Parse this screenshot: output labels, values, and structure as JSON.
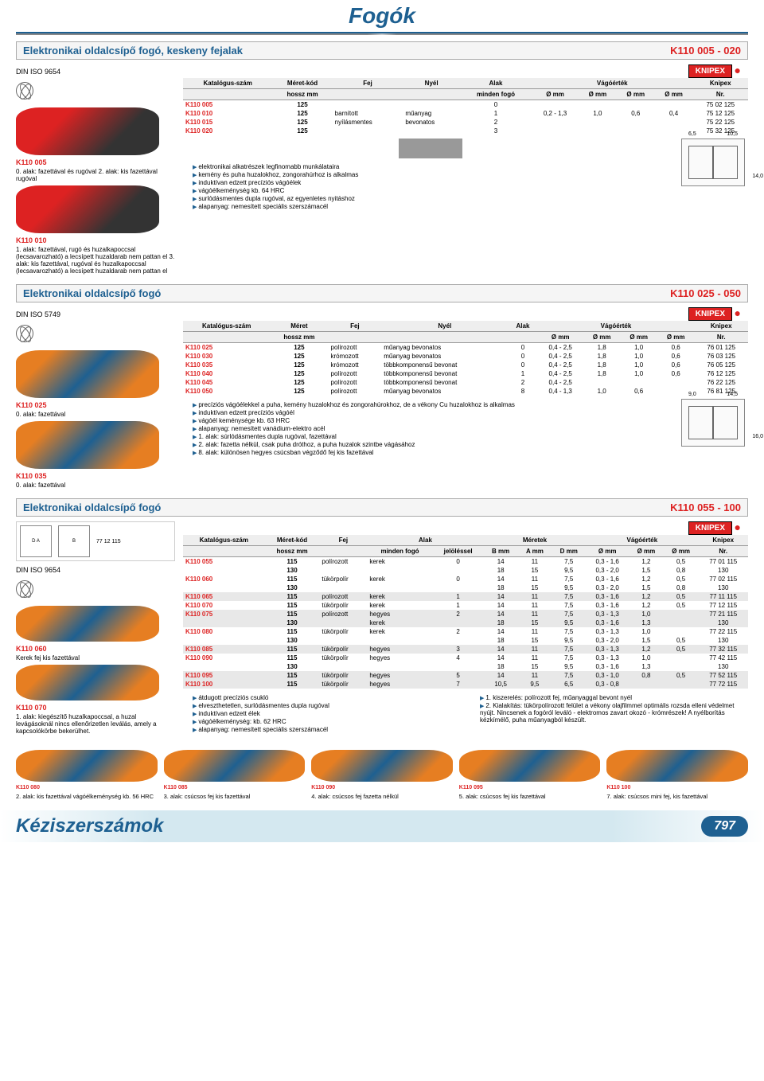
{
  "page": {
    "title": "Fogók",
    "footer": "Kéziszerszámok",
    "number": "797"
  },
  "brand": "KNIPEX",
  "sec1": {
    "title": "Elektronikai oldalcsípő fogó, keskeny fejalak",
    "code": "K110 005 - 020",
    "din": "DIN ISO 9654",
    "left": [
      {
        "code": "K110 005",
        "desc": "0. alak: fazettával és rugóval\n2. alak: kis fazettával rugóval"
      },
      {
        "code": "K110 010",
        "desc": "1. alak: fazettával, rugó és huzalkapoccsal (lecsavarozható) a lecsípett huzaldarab nem pattan el\n3. alak: kis fazettával, rugóval és huzalkapoccsal (lecsavarozható) a lecsípett huzaldarab nem pattan el"
      }
    ],
    "headers": {
      "katalog": "Katalógus-szám",
      "meret": "Méret-kód",
      "fej": "Fej",
      "nyel": "Nyél",
      "alak": "Alak",
      "vago": "Vágóérték",
      "knipex": "Knipex",
      "hossz": "hossz\nmm",
      "minden": "minden fogó",
      "omm": "Ø mm",
      "nr": "Nr."
    },
    "rows": [
      {
        "cat": "K110 005",
        "size": "125",
        "fej": "",
        "nyel": "",
        "alak": "0",
        "v1": "",
        "v2": "",
        "v3": "",
        "v4": "",
        "nr": "75 02 125"
      },
      {
        "cat": "K110 010",
        "size": "125",
        "fej": "barnított",
        "nyel": "műanyag",
        "alak": "1",
        "v1": "0,2 - 1,3",
        "v2": "1,0",
        "v3": "0,6",
        "v4": "0,4",
        "nr": "75 12 125"
      },
      {
        "cat": "K110 015",
        "size": "125",
        "fej": "nyílásmentes",
        "nyel": "bevonatos",
        "alak": "2",
        "v1": "",
        "v2": "",
        "v3": "",
        "v4": "",
        "nr": "75 22 125"
      },
      {
        "cat": "K110 020",
        "size": "125",
        "fej": "",
        "nyel": "",
        "alak": "3",
        "v1": "",
        "v2": "",
        "v3": "",
        "v4": "",
        "nr": "75 32 125"
      }
    ],
    "bullets": [
      "elektronikai alkatrészek legfinomabb munkálataira",
      "kemény és puha huzalokhoz, zongorahúrhoz is alkalmas",
      "induktívan edzett precíziós vágóélek",
      "vágóélkeménység kb. 64 HRC",
      "surlódásmentes dupla rugóval, az egyenletes nyitáshoz",
      "alapanyag: nemesített speciális szerszámacél"
    ],
    "dims": {
      "w": "6,5",
      "h": "10,5",
      "d": "14,0"
    }
  },
  "sec2": {
    "title": "Elektronikai oldalcsípő fogó",
    "code": "K110 025 - 050",
    "din": "DIN ISO 5749",
    "left": [
      {
        "code": "K110 025",
        "desc": "0. alak: fazettával"
      },
      {
        "code": "K110 035",
        "desc": "0. alak: fazettával"
      }
    ],
    "headers": {
      "meret": "Méret"
    },
    "rows": [
      {
        "cat": "K110 025",
        "size": "125",
        "fej": "polírozott",
        "nyel": "műanyag bevonatos",
        "alak": "0",
        "v1": "0,4 - 2,5",
        "v2": "1,8",
        "v3": "1,0",
        "v4": "0,6",
        "nr": "76 01 125"
      },
      {
        "cat": "K110 030",
        "size": "125",
        "fej": "krómozott",
        "nyel": "műanyag bevonatos",
        "alak": "0",
        "v1": "0,4 - 2,5",
        "v2": "1,8",
        "v3": "1,0",
        "v4": "0,6",
        "nr": "76 03 125"
      },
      {
        "cat": "K110 035",
        "size": "125",
        "fej": "krómozott",
        "nyel": "többkomponensű bevonat",
        "alak": "0",
        "v1": "0,4 - 2,5",
        "v2": "1,8",
        "v3": "1,0",
        "v4": "0,6",
        "nr": "76 05 125"
      },
      {
        "cat": "K110 040",
        "size": "125",
        "fej": "polírozott",
        "nyel": "többkomponensű bevonat",
        "alak": "1",
        "v1": "0,4 - 2,5",
        "v2": "1,8",
        "v3": "1,0",
        "v4": "0,6",
        "nr": "76 12 125"
      },
      {
        "cat": "K110 045",
        "size": "125",
        "fej": "polírozott",
        "nyel": "többkomponensű bevonat",
        "alak": "2",
        "v1": "0,4 - 2,5",
        "v2": "",
        "v3": "",
        "v4": "",
        "nr": "76 22 125"
      },
      {
        "cat": "K110 050",
        "size": "125",
        "fej": "polírozott",
        "nyel": "műanyag bevonatos",
        "alak": "8",
        "v1": "0,4 - 1,3",
        "v2": "1,0",
        "v3": "0,6",
        "v4": "",
        "nr": "76 81 125"
      }
    ],
    "bullets": [
      "precíziós vágóélekkel a puha, kemény huzalokhoz és zongorahúrokhoz, de a vékony Cu huzalokhoz is alkalmas",
      "induktívan edzett precíziós vágóél",
      "vágóél keménysége kb. 63 HRC",
      "alapanyag: nemesített vanádium-elektro acél",
      "1. alak: súrlódásmentes dupla rugóval, fazettával",
      "2. alak: fazetta nélkül, csak puha dróthoz, a puha huzalok szintbe vágásához",
      "8. alak: különösen hegyes csúcsban végződő fej kis fazettával"
    ],
    "dims": {
      "w": "9,0",
      "h": "14,5",
      "d": "16,0"
    }
  },
  "sec3": {
    "title": "Elektronikai oldalcsípő fogó",
    "code": "K110 055 - 100",
    "din": "DIN ISO 9654",
    "diag_label": "77 12 115",
    "left": [
      {
        "code": "K110 060",
        "desc": "Kerek fej kis fazettával"
      },
      {
        "code": "K110 070",
        "desc": "1. alak: kiegészítő huzalkapoccsal, a huzal levágásoknál nincs ellenőrizetlen leválás, amely a kapcsolókörbe bekerülhet."
      }
    ],
    "headers": {
      "meretek": "Méretek",
      "jelol": "jelöléssel",
      "b": "B\nmm",
      "a": "A\nmm",
      "d": "D\nmm"
    },
    "rows": [
      {
        "cat": "K110 055",
        "size": "115",
        "fej": "polírozott",
        "nyel": "kerek",
        "alak": "0",
        "b": "14",
        "a": "11",
        "d": "7,5",
        "v1": "0,3 - 1,6",
        "v2": "1,2",
        "v3": "0,5",
        "nr": "77 01 115",
        "sh": false
      },
      {
        "cat": "",
        "size": "130",
        "fej": "",
        "nyel": "",
        "alak": "",
        "b": "18",
        "a": "15",
        "d": "9,5",
        "v1": "0,3 - 2,0",
        "v2": "1,5",
        "v3": "0,8",
        "nr": "130",
        "sh": false
      },
      {
        "cat": "K110 060",
        "size": "115",
        "fej": "tükörpolír",
        "nyel": "kerek",
        "alak": "0",
        "b": "14",
        "a": "11",
        "d": "7,5",
        "v1": "0,3 - 1,6",
        "v2": "1,2",
        "v3": "0,5",
        "nr": "77 02 115",
        "sh": false
      },
      {
        "cat": "",
        "size": "130",
        "fej": "",
        "nyel": "",
        "alak": "",
        "b": "18",
        "a": "15",
        "d": "9,5",
        "v1": "0,3 - 2,0",
        "v2": "1,5",
        "v3": "0,8",
        "nr": "130",
        "sh": false
      },
      {
        "cat": "K110 065",
        "size": "115",
        "fej": "polírozott",
        "nyel": "kerek",
        "alak": "1",
        "b": "14",
        "a": "11",
        "d": "7,5",
        "v1": "0,3 - 1,6",
        "v2": "1,2",
        "v3": "0,5",
        "nr": "77 11 115",
        "sh": true
      },
      {
        "cat": "K110 070",
        "size": "115",
        "fej": "tükörpolír",
        "nyel": "kerek",
        "alak": "1",
        "b": "14",
        "a": "11",
        "d": "7,5",
        "v1": "0,3 - 1,6",
        "v2": "1,2",
        "v3": "0,5",
        "nr": "77 12 115",
        "sh": false
      },
      {
        "cat": "K110 075",
        "size": "115",
        "fej": "polírozott",
        "nyel": "hegyes",
        "alak": "2",
        "b": "14",
        "a": "11",
        "d": "7,5",
        "v1": "0,3 - 1,3",
        "v2": "1,0",
        "v3": "",
        "nr": "77 21 115",
        "sh": true
      },
      {
        "cat": "",
        "size": "130",
        "fej": "",
        "nyel": "kerek",
        "alak": "",
        "b": "18",
        "a": "15",
        "d": "9,5",
        "v1": "0,3 - 1,6",
        "v2": "1,3",
        "v3": "",
        "nr": "130",
        "sh": true
      },
      {
        "cat": "K110 080",
        "size": "115",
        "fej": "tükörpolír",
        "nyel": "kerek",
        "alak": "2",
        "b": "14",
        "a": "11",
        "d": "7,5",
        "v1": "0,3 - 1,3",
        "v2": "1,0",
        "v3": "",
        "nr": "77 22 115",
        "sh": false
      },
      {
        "cat": "",
        "size": "130",
        "fej": "",
        "nyel": "",
        "alak": "",
        "b": "18",
        "a": "15",
        "d": "9,5",
        "v1": "0,3 - 2,0",
        "v2": "1,5",
        "v3": "0,5",
        "nr": "130",
        "sh": false
      },
      {
        "cat": "K110 085",
        "size": "115",
        "fej": "tükörpolír",
        "nyel": "hegyes",
        "alak": "3",
        "b": "14",
        "a": "11",
        "d": "7,5",
        "v1": "0,3 - 1,3",
        "v2": "1,2",
        "v3": "0,5",
        "nr": "77 32 115",
        "sh": true
      },
      {
        "cat": "K110 090",
        "size": "115",
        "fej": "tükörpolír",
        "nyel": "hegyes",
        "alak": "4",
        "b": "14",
        "a": "11",
        "d": "7,5",
        "v1": "0,3 - 1,3",
        "v2": "1,0",
        "v3": "",
        "nr": "77 42 115",
        "sh": false
      },
      {
        "cat": "",
        "size": "130",
        "fej": "",
        "nyel": "",
        "alak": "",
        "b": "18",
        "a": "15",
        "d": "9,5",
        "v1": "0,3 - 1,6",
        "v2": "1,3",
        "v3": "",
        "nr": "130",
        "sh": false
      },
      {
        "cat": "K110 095",
        "size": "115",
        "fej": "tükörpolír",
        "nyel": "hegyes",
        "alak": "5",
        "b": "14",
        "a": "11",
        "d": "7,5",
        "v1": "0,3 - 1,0",
        "v2": "0,8",
        "v3": "0,5",
        "nr": "77 52 115",
        "sh": true
      },
      {
        "cat": "K110 100",
        "size": "115",
        "fej": "tükörpolír",
        "nyel": "hegyes",
        "alak": "7",
        "b": "10,5",
        "a": "9,5",
        "d": "6,5",
        "v1": "0,3 - 0,8",
        "v2": "",
        "v3": "",
        "nr": "77 72 115",
        "sh": true
      }
    ],
    "bullets_left": [
      "átdugott precíziós csukló",
      "elveszthetetlen, surlódásmentes dupla rugóval",
      "induktívan edzett élek",
      "vágóélkeménység: kb. 62 HRC",
      "alapanyag: nemesített speciális szerszámacél"
    ],
    "bullets_right": [
      "1. kiszerelés: polírozott fej, műanyaggal bevont nyél",
      "2. Kialakítás: tükörpolírozott felület a vékony olajfilmmel optimális rozsda elleni védelmet nyújt. Nincsenek a fogóról leváló - elektromos zavart okozó - krómrészek! A nyélborítás kézkímélő, puha műanyagból készült."
    ],
    "bottom": [
      {
        "code": "K110 080",
        "desc": "2. alak: kis fazettával vágóélkeménység kb. 56 HRC"
      },
      {
        "code": "K110 085",
        "desc": "3. alak: csúcsos fej kis fazettával"
      },
      {
        "code": "K110 090",
        "desc": "4. alak: csúcsos fej fazetta nélkül"
      },
      {
        "code": "K110 095",
        "desc": "5. alak: csúcsos fej kis fazettával"
      },
      {
        "code": "K110 100",
        "desc": "7. alak: csúcsos mini fej, kis fazettával"
      }
    ]
  }
}
